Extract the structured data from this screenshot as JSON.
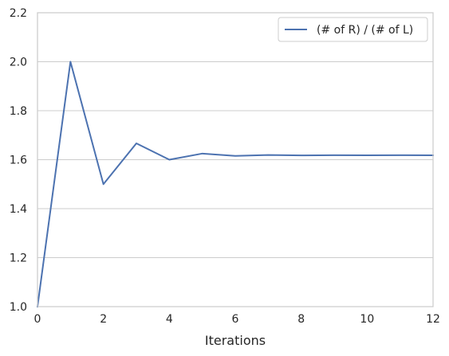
{
  "chart_data": {
    "type": "line",
    "title": "",
    "xlabel": "Iterations",
    "ylabel": "",
    "xlim": [
      0,
      12
    ],
    "ylim": [
      1.0,
      2.2
    ],
    "xticks": [
      0,
      2,
      4,
      6,
      8,
      10,
      12
    ],
    "xtick_labels": [
      "0",
      "2",
      "4",
      "6",
      "8",
      "10",
      "12"
    ],
    "yticks": [
      1.0,
      1.2,
      1.4,
      1.6,
      1.8,
      2.0,
      2.2
    ],
    "ytick_labels": [
      "1.0",
      "1.2",
      "1.4",
      "1.6",
      "1.8",
      "2.0",
      "2.2"
    ],
    "grid": "horizontal",
    "legend_position": "top-right",
    "series": [
      {
        "name": "(# of R) / (# of L)",
        "color": "#4c72b0",
        "x": [
          0,
          1,
          2,
          3,
          4,
          5,
          6,
          7,
          8,
          9,
          10,
          11,
          12
        ],
        "y": [
          1.0,
          2.0,
          1.5,
          1.6667,
          1.6,
          1.625,
          1.6154,
          1.619,
          1.6176,
          1.6182,
          1.618,
          1.6181,
          1.618
        ]
      }
    ]
  }
}
